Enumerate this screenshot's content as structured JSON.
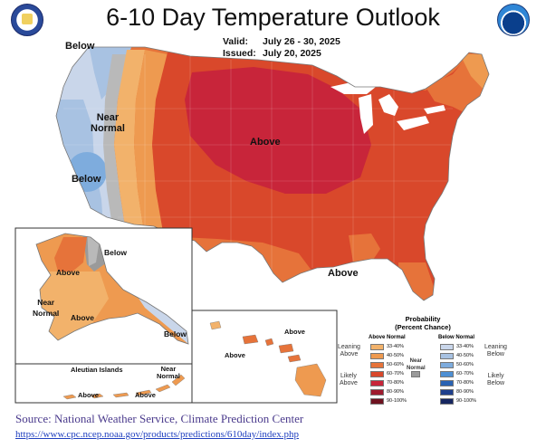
{
  "title": "6-10 Day Temperature Outlook",
  "valid": {
    "label": "Valid:",
    "value": "July 26 - 30, 2025"
  },
  "issued": {
    "label": "Issued:",
    "value": "July 20, 2025"
  },
  "map_labels": {
    "conus_below": "Below",
    "conus_near_1": "Near",
    "conus_near_2": "Normal",
    "conus_below_ca": "Below",
    "conus_above_center": "Above",
    "conus_above_south": "Above",
    "ak_below": "Below",
    "ak_above": "Above",
    "ak_near_1": "Near",
    "ak_near_2": "Normal",
    "ak_above_sw": "Above",
    "ak_below_se": "Below",
    "aleutian_title": "Aleutian Islands",
    "aleutian_near_1": "Near",
    "aleutian_near_2": "Normal",
    "aleutian_above_1": "Above",
    "aleutian_above_2": "Above",
    "hi_above_1": "Above",
    "hi_above_2": "Above"
  },
  "legend": {
    "title_1": "Probability",
    "title_2": "(Percent Chance)",
    "above_head": "Above Normal",
    "below_head": "Below Normal",
    "near_1": "Near",
    "near_2": "Normal",
    "leaning_above_1": "Leaning",
    "leaning_above_2": "Above",
    "likely_above_1": "Likely",
    "likely_above_2": "Above",
    "leaning_below_1": "Leaning",
    "leaning_below_2": "Below",
    "likely_below_1": "Likely",
    "likely_below_2": "Below",
    "above_items": [
      {
        "label": "33-40%",
        "color": "#f2b26b"
      },
      {
        "label": "40-50%",
        "color": "#ee9a50"
      },
      {
        "label": "50-60%",
        "color": "#e6733a"
      },
      {
        "label": "60-70%",
        "color": "#d9482b"
      },
      {
        "label": "70-80%",
        "color": "#c8253a"
      },
      {
        "label": "80-90%",
        "color": "#9e1b2e"
      },
      {
        "label": "90-100%",
        "color": "#6e1220"
      }
    ],
    "below_items": [
      {
        "label": "33-40%",
        "color": "#c9d6ea"
      },
      {
        "label": "40-50%",
        "color": "#a8c2e2"
      },
      {
        "label": "50-60%",
        "color": "#7eacdd"
      },
      {
        "label": "60-70%",
        "color": "#4d8fd3"
      },
      {
        "label": "70-80%",
        "color": "#2a63b3"
      },
      {
        "label": "80-90%",
        "color": "#1f3f8c"
      },
      {
        "label": "90-100%",
        "color": "#162660"
      }
    ],
    "near_color": "#9a9a9a"
  },
  "source": "Source: National Weather Service, Climate Prediction Center",
  "url": "https://www.cpc.ncep.noaa.gov/products/predictions/610day/index.php",
  "icons": {
    "left_logo": "us-department-of-commerce-seal-icon",
    "right_logo": "noaa-logo-icon"
  }
}
